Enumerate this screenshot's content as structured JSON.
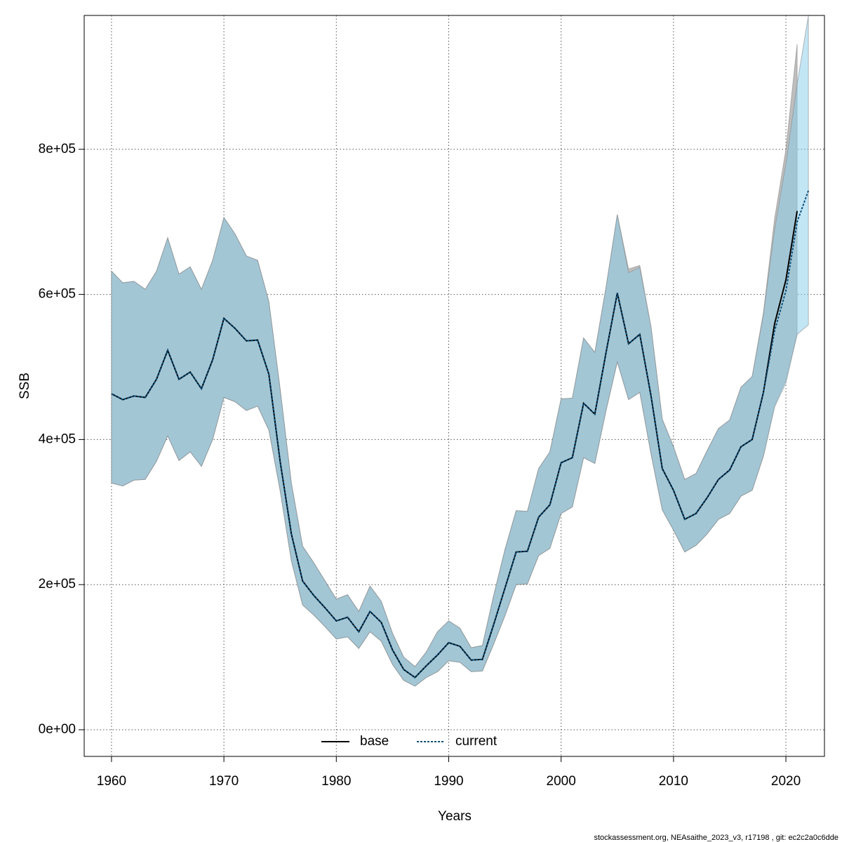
{
  "chart_data": {
    "type": "band_line",
    "x_label": "Years",
    "y_label": "SSB",
    "footer": "stockassessment.org, NEAsaithe_2023_v3, r17198 , git: ec2c2a0c6dde",
    "x": [
      1960,
      1961,
      1962,
      1963,
      1964,
      1965,
      1966,
      1967,
      1968,
      1969,
      1970,
      1971,
      1972,
      1973,
      1974,
      1975,
      1976,
      1977,
      1978,
      1979,
      1980,
      1981,
      1982,
      1983,
      1984,
      1985,
      1986,
      1987,
      1988,
      1989,
      1990,
      1991,
      1992,
      1993,
      1994,
      1995,
      1996,
      1997,
      1998,
      1999,
      2000,
      2001,
      2002,
      2003,
      2004,
      2005,
      2006,
      2007,
      2008,
      2009,
      2010,
      2011,
      2012,
      2013,
      2014,
      2015,
      2016,
      2017,
      2018,
      2019,
      2020,
      2021,
      2022
    ],
    "series": [
      {
        "name": "base",
        "color": "#000000",
        "band_color": "#bebebe",
        "dash": false,
        "values": [
          463000,
          455000,
          460000,
          458000,
          483000,
          523000,
          483000,
          493000,
          470000,
          510000,
          567000,
          553000,
          536000,
          537000,
          490000,
          370000,
          270000,
          205000,
          185000,
          168000,
          150000,
          155000,
          135000,
          163000,
          148000,
          110000,
          83000,
          72000,
          88000,
          103000,
          120000,
          115000,
          96000,
          97000,
          145000,
          195000,
          245000,
          246000,
          293000,
          310000,
          368000,
          375000,
          450000,
          435000,
          520000,
          602000,
          532000,
          545000,
          460000,
          360000,
          330000,
          290000,
          298000,
          320000,
          345000,
          358000,
          390000,
          400000,
          465000,
          560000,
          620000,
          715000,
          null
        ],
        "upper": [
          632000,
          616000,
          618000,
          607000,
          632000,
          678000,
          628000,
          638000,
          607000,
          647000,
          706000,
          683000,
          653000,
          647000,
          590000,
          470000,
          340000,
          253000,
          230000,
          205000,
          180000,
          186000,
          163000,
          198000,
          177000,
          133000,
          100000,
          87000,
          107000,
          135000,
          150000,
          140000,
          113000,
          116000,
          185000,
          248000,
          302000,
          301000,
          360000,
          383000,
          456000,
          457000,
          540000,
          520000,
          610000,
          710000,
          635000,
          640000,
          555000,
          428000,
          390000,
          345000,
          353000,
          385000,
          415000,
          427000,
          472000,
          487000,
          575000,
          705000,
          800000,
          945000,
          null
        ],
        "lower": [
          340000,
          336000,
          344000,
          345000,
          370000,
          405000,
          371000,
          383000,
          363000,
          400000,
          458000,
          452000,
          440000,
          446000,
          413000,
          330000,
          233000,
          172000,
          158000,
          142000,
          125000,
          128000,
          112000,
          135000,
          122000,
          90000,
          68000,
          60000,
          72000,
          80000,
          95000,
          93000,
          80000,
          81000,
          118000,
          157000,
          200000,
          201000,
          240000,
          250000,
          298000,
          307000,
          375000,
          367000,
          440000,
          507000,
          455000,
          465000,
          380000,
          303000,
          275000,
          245000,
          254000,
          270000,
          290000,
          298000,
          322000,
          330000,
          377000,
          447000,
          482000,
          545000,
          null
        ]
      },
      {
        "name": "current",
        "color": "#0b4f7a",
        "band_color": "#87ceeb",
        "dash": true,
        "values": [
          463000,
          455000,
          460000,
          458000,
          483000,
          523000,
          483000,
          493000,
          470000,
          510000,
          567000,
          553000,
          536000,
          537000,
          490000,
          370000,
          270000,
          205000,
          185000,
          168000,
          150000,
          155000,
          135000,
          163000,
          148000,
          110000,
          83000,
          72000,
          88000,
          103000,
          120000,
          115000,
          96000,
          97000,
          145000,
          195000,
          245000,
          246000,
          293000,
          310000,
          368000,
          375000,
          450000,
          435000,
          520000,
          602000,
          532000,
          545000,
          460000,
          360000,
          330000,
          290000,
          298000,
          320000,
          345000,
          358000,
          390000,
          400000,
          465000,
          550000,
          605000,
          700000,
          743000
        ],
        "upper": [
          632000,
          616000,
          618000,
          607000,
          632000,
          678000,
          628000,
          638000,
          607000,
          647000,
          706000,
          683000,
          653000,
          647000,
          590000,
          470000,
          340000,
          253000,
          230000,
          205000,
          180000,
          186000,
          163000,
          198000,
          177000,
          133000,
          100000,
          87000,
          107000,
          135000,
          150000,
          140000,
          113000,
          116000,
          185000,
          248000,
          302000,
          301000,
          360000,
          383000,
          456000,
          457000,
          540000,
          520000,
          610000,
          710000,
          630000,
          637000,
          555000,
          428000,
          390000,
          345000,
          353000,
          385000,
          415000,
          427000,
          472000,
          487000,
          572000,
          690000,
          780000,
          890000,
          984000
        ],
        "lower": [
          340000,
          336000,
          344000,
          345000,
          370000,
          405000,
          371000,
          383000,
          363000,
          400000,
          458000,
          452000,
          440000,
          446000,
          413000,
          330000,
          233000,
          172000,
          158000,
          142000,
          125000,
          128000,
          112000,
          135000,
          122000,
          90000,
          68000,
          60000,
          72000,
          80000,
          95000,
          93000,
          80000,
          81000,
          118000,
          157000,
          200000,
          201000,
          240000,
          250000,
          298000,
          307000,
          375000,
          367000,
          440000,
          507000,
          455000,
          465000,
          380000,
          303000,
          275000,
          245000,
          254000,
          270000,
          290000,
          298000,
          322000,
          330000,
          377000,
          445000,
          478000,
          545000,
          558000
        ]
      }
    ],
    "xlim": [
      1957.57,
      2023.43
    ],
    "xticks": [
      1960,
      1970,
      1980,
      1990,
      2000,
      2010,
      2020
    ],
    "ylim": [
      -36750,
      984500
    ],
    "yticks": [
      {
        "value": 0,
        "label": "0e+00"
      },
      {
        "value": 200000,
        "label": "2e+05"
      },
      {
        "value": 400000,
        "label": "4e+05"
      },
      {
        "value": 600000,
        "label": "6e+05"
      },
      {
        "value": 800000,
        "label": "8e+05"
      }
    ],
    "grid": true,
    "legend": "bottom"
  }
}
